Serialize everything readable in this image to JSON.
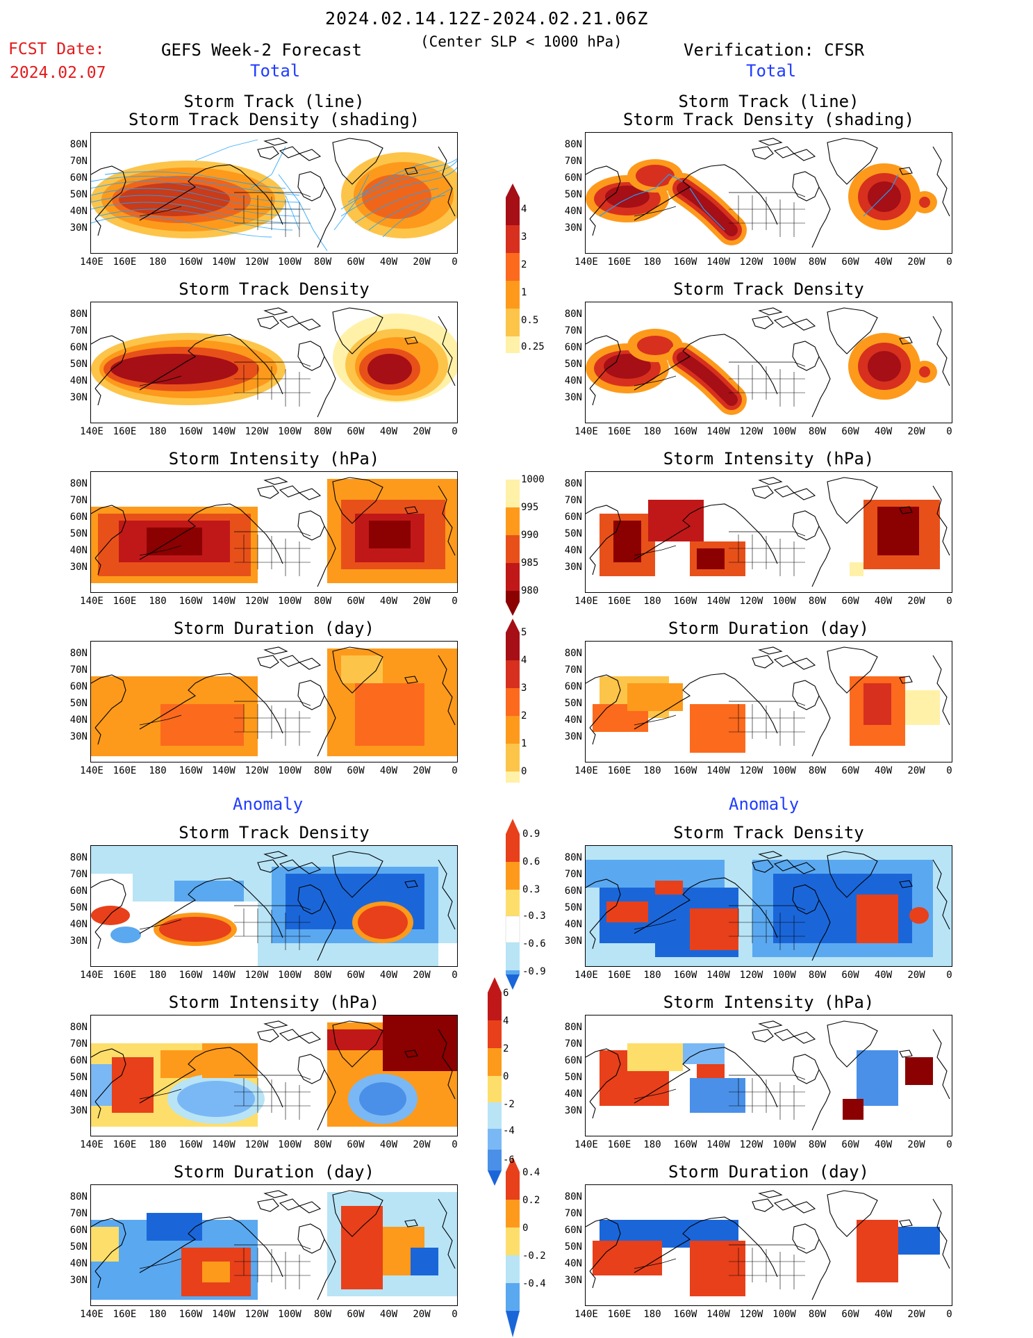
{
  "header": {
    "period": "2024.02.14.12Z-2024.02.21.06Z",
    "subtitle": "(Center SLP < 1000 hPa)",
    "fcst_label": "FCST Date:",
    "fcst_date": "2024.02.07",
    "left_title": "GEFS Week-2 Forecast",
    "right_title": "Verification: CFSR",
    "total_label": "Total",
    "anomaly_label": "Anomaly"
  },
  "panel_titles": {
    "track_line": "Storm Track (line)",
    "track_density_shading": "Storm Track Density (shading)",
    "track_density": "Storm Track Density",
    "intensity": "Storm Intensity (hPa)",
    "duration": "Storm Duration (day)"
  },
  "axes": {
    "lat_labels": [
      "80N",
      "70N",
      "60N",
      "50N",
      "40N",
      "30N"
    ],
    "lon_labels": [
      "140E",
      "160E",
      "180",
      "160W",
      "140W",
      "120W",
      "100W",
      "80W",
      "60W",
      "40W",
      "20W",
      "0"
    ]
  },
  "colorbars": {
    "density": {
      "labels": [
        "4",
        "3",
        "2",
        "1",
        "0.5",
        "0.25"
      ],
      "colors": [
        "#a50f15",
        "#d7301f",
        "#fc6a1e",
        "#fd9a1b",
        "#fdc44a",
        "#fff1a8"
      ]
    },
    "intensity": {
      "labels": [
        "1000",
        "995",
        "990",
        "985",
        "980"
      ],
      "colors": [
        "#fff1a8",
        "#fd9a1b",
        "#e8501a",
        "#c01818",
        "#8b0000"
      ]
    },
    "duration": {
      "labels": [
        "5",
        "4",
        "3",
        "2",
        "1",
        "0"
      ],
      "colors": [
        "#a50f15",
        "#d7301f",
        "#fc6a1e",
        "#fd9a1b",
        "#fdc44a",
        "#fff1a8"
      ]
    },
    "anom_density": {
      "labels": [
        "0.9",
        "0.6",
        "0.3",
        "-0.3",
        "-0.6",
        "-0.9"
      ],
      "colors": [
        "#e8401a",
        "#fd9a1b",
        "#fdde6a",
        "#ffffff",
        "#b8e4f6",
        "#5aa8f0",
        "#1a66d9"
      ]
    },
    "anom_intensity": {
      "labels": [
        "6",
        "4",
        "2",
        "0",
        "-2",
        "-4",
        "-6"
      ],
      "colors": [
        "#c01818",
        "#e8401a",
        "#fd9a1b",
        "#fdde6a",
        "#b8e4f6",
        "#7ab8f5",
        "#4a90e8",
        "#1a66d9"
      ]
    },
    "anom_duration": {
      "labels": [
        "0.4",
        "0.2",
        "0",
        "-0.2",
        "-0.4"
      ],
      "colors": [
        "#e8401a",
        "#fd9a1b",
        "#fdde6a",
        "#b8e4f6",
        "#5aa8f0",
        "#1a66d9"
      ]
    }
  }
}
